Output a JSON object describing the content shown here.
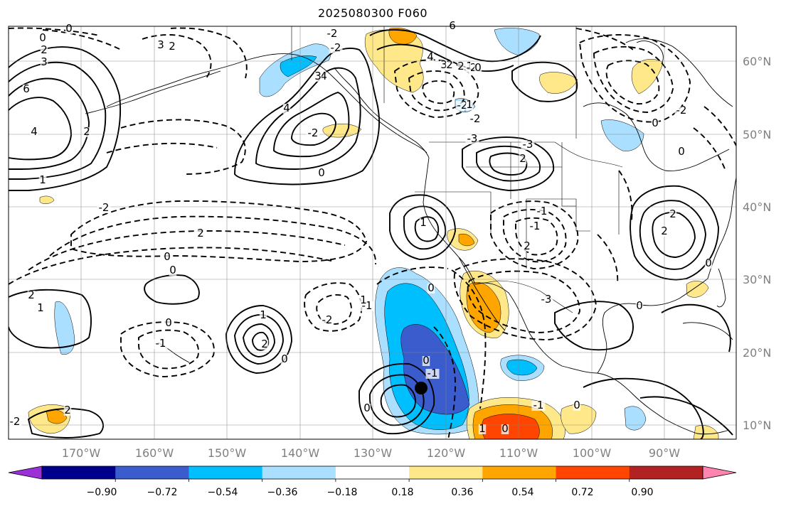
{
  "title": "2025080300 F060",
  "lat_labels": [
    "60°N",
    "50°N",
    "40°N",
    "30°N",
    "20°N",
    "10°N"
  ],
  "lon_labels": [
    "170°W",
    "160°W",
    "150°W",
    "140°W",
    "130°W",
    "120°W",
    "110°W",
    "100°W",
    "90°W"
  ],
  "colorbar": {
    "tick_labels": [
      "−0.90",
      "−0.72",
      "−0.54",
      "−0.36",
      "−0.18",
      "0.18",
      "0.36",
      "0.54",
      "0.72",
      "0.90"
    ],
    "colors": [
      "#9b30d9",
      "#00008b",
      "#3a5ccc",
      "#00bfff",
      "#aadfff",
      "#ffffff",
      "#ffe88a",
      "#ffa500",
      "#ff4500",
      "#b22222",
      "#ff85b0"
    ]
  },
  "contour_labels": [
    "0",
    "0",
    "2",
    "3",
    "6",
    "4",
    "2",
    "1",
    "-2",
    "2",
    "3",
    "2",
    "4",
    "0",
    "-2",
    "-2",
    "6",
    "4",
    "3",
    "2",
    "2",
    "1",
    "-2",
    "0",
    "-2",
    "4",
    "3",
    "-2",
    "1",
    "-2",
    "-3",
    "-3",
    "2",
    "-1",
    "-1",
    "2",
    "-3",
    "-2",
    "-1",
    "1",
    "2",
    "2",
    "0",
    "0",
    "-1",
    "0",
    "1",
    "0",
    "2",
    "1",
    "2",
    "-2",
    "0",
    "-1",
    "1",
    "2",
    "0",
    "1",
    "0",
    "-1",
    "0",
    "0",
    "0",
    "-2",
    "0",
    "0",
    "0"
  ],
  "marker": {
    "name": "point"
  }
}
